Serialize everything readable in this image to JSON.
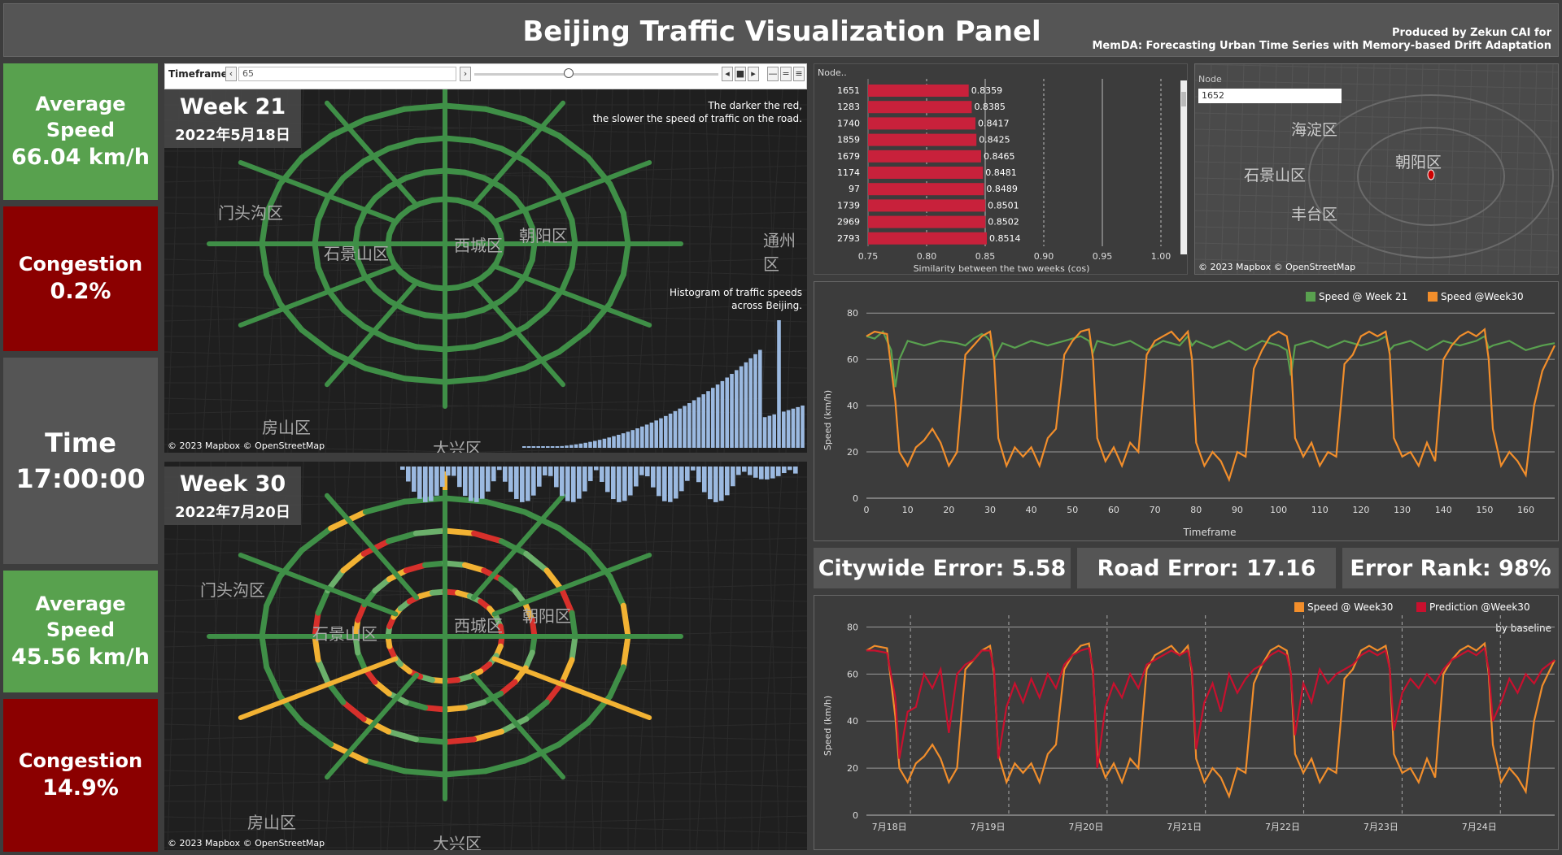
{
  "header": {
    "title": "Beijing Traffic Visualization Panel",
    "credit_line1": "Produced by Zekun CAI for",
    "credit_line2": "MemDA: Forecasting Urban Time Series with Memory-based Drift Adaptation"
  },
  "kpis": {
    "week21_speed_label": "Average Speed",
    "week21_speed_value": "66.04 km/h",
    "week21_congestion_label": "Congestion",
    "week21_congestion_value": "0.2%",
    "time_label": "Time",
    "time_value": "17:00:00",
    "week30_speed_label": "Average Speed",
    "week30_speed_value": "45.56 km/h",
    "week30_congestion_label": "Congestion",
    "week30_congestion_value": "14.9%"
  },
  "timeframe": {
    "label": "Timeframe",
    "value": "65"
  },
  "map_top": {
    "week": "Week 21",
    "date": "2022年5月18日",
    "note_line1": "The darker the red,",
    "note_line2": "the slower the speed of traffic on the road.",
    "hist_line1": "Histogram of traffic speeds",
    "hist_line2": "across Beijing.",
    "copyright": "© 2023 Mapbox © OpenStreetMap",
    "districts": [
      "门头沟区",
      "石景山区",
      "西城区",
      "朝阳区",
      "房山区",
      "大兴区",
      "通州区"
    ]
  },
  "map_bottom": {
    "week": "Week 30",
    "date": "2022年7月20日",
    "copyright": "© 2023 Mapbox © OpenStreetMap",
    "districts": [
      "门头沟区",
      "石景山区",
      "西城区",
      "朝阳区",
      "房山区",
      "大兴区"
    ]
  },
  "similarity": {
    "header": "Node..",
    "xlabel": "Similarity between the two weeks (cos)",
    "colors": {
      "bar": "#c8213b"
    }
  },
  "minimap": {
    "node_label": "Node",
    "node_value": "1652",
    "copyright": "© 2023 Mapbox © OpenStreetMap",
    "districts": [
      "海淀区",
      "石景山区",
      "朝阳区",
      "丰台区"
    ]
  },
  "errors": {
    "citywide": "Citywide Error: 5.58",
    "road": "Road Error: 17.16",
    "rank": "Error Rank: 98%"
  },
  "speed_chart": {
    "legend1": "Speed @ Week 21",
    "legend2": "Speed @Week30",
    "ylabel": "Speed (km/h)",
    "xlabel": "Timeframe",
    "colors": {
      "s1": "#59a14f",
      "s2": "#f28e2b"
    }
  },
  "pred_chart": {
    "legend1": "Speed @ Week30",
    "legend2": "Prediction @Week30",
    "note": "by baseline",
    "ylabel": "Speed (km/h)",
    "colors": {
      "s1": "#f28e2b",
      "s2": "#c8102e"
    }
  },
  "chart_data": [
    {
      "type": "bar",
      "categories": [
        "1651",
        "1283",
        "1740",
        "1859",
        "1679",
        "1174",
        "97",
        "1739",
        "2969",
        "2793"
      ],
      "values": [
        0.8359,
        0.8385,
        0.8417,
        0.8425,
        0.8465,
        0.8481,
        0.8489,
        0.8501,
        0.8502,
        0.8514
      ],
      "xlabel": "Similarity between the two weeks (cos)",
      "xlim": [
        0.75,
        1.0
      ],
      "xticks": [
        "0.75",
        "0.80",
        "0.85",
        "0.90",
        "0.95",
        "1.00"
      ]
    },
    {
      "type": "line",
      "xlabel": "Timeframe",
      "ylabel": "Speed (km/h)",
      "xlim": [
        0,
        167
      ],
      "ylim": [
        0,
        85
      ],
      "xticks": [
        0,
        10,
        20,
        30,
        40,
        50,
        60,
        70,
        80,
        90,
        100,
        110,
        120,
        130,
        140,
        150,
        160
      ],
      "yticks": [
        0,
        20,
        40,
        60,
        80
      ],
      "series": [
        {
          "name": "Speed @ Week 21",
          "x": [
            0,
            2,
            4,
            6,
            7,
            8,
            10,
            14,
            18,
            22,
            24,
            26,
            28,
            29,
            30,
            31,
            33,
            36,
            40,
            44,
            48,
            52,
            54,
            55,
            56,
            60,
            64,
            68,
            72,
            76,
            78,
            79,
            80,
            84,
            88,
            92,
            96,
            100,
            102,
            103,
            104,
            108,
            112,
            116,
            120,
            124,
            126,
            127,
            128,
            132,
            136,
            140,
            144,
            148,
            150,
            151,
            152,
            156,
            160,
            164,
            167
          ],
          "y": [
            70,
            69,
            72,
            64,
            48,
            60,
            68,
            66,
            68,
            67,
            66,
            69,
            71,
            70,
            68,
            60,
            67,
            65,
            68,
            66,
            68,
            70,
            68,
            63,
            68,
            66,
            68,
            64,
            68,
            66,
            70,
            66,
            68,
            65,
            68,
            64,
            68,
            66,
            64,
            53,
            66,
            68,
            65,
            68,
            66,
            68,
            70,
            64,
            66,
            68,
            64,
            68,
            66,
            68,
            70,
            65,
            66,
            68,
            64,
            66,
            67
          ]
        },
        {
          "name": "Speed @Week30",
          "x": [
            0,
            2,
            5,
            7,
            8,
            10,
            12,
            14,
            16,
            18,
            20,
            22,
            24,
            26,
            28,
            30,
            31,
            32,
            34,
            36,
            38,
            40,
            42,
            44,
            46,
            48,
            50,
            52,
            54,
            55,
            56,
            58,
            60,
            62,
            64,
            66,
            68,
            70,
            72,
            74,
            76,
            78,
            79,
            80,
            82,
            84,
            86,
            88,
            90,
            92,
            94,
            96,
            98,
            100,
            102,
            103,
            104,
            106,
            108,
            110,
            112,
            114,
            116,
            118,
            120,
            122,
            124,
            126,
            127,
            128,
            130,
            132,
            134,
            136,
            138,
            140,
            142,
            144,
            146,
            148,
            150,
            151,
            152,
            154,
            156,
            158,
            160,
            162,
            164,
            167
          ],
          "y": [
            70,
            72,
            71,
            42,
            20,
            14,
            22,
            25,
            30,
            24,
            14,
            20,
            62,
            66,
            70,
            72,
            60,
            26,
            14,
            22,
            18,
            22,
            14,
            26,
            30,
            62,
            68,
            72,
            73,
            60,
            26,
            16,
            22,
            14,
            24,
            20,
            62,
            68,
            70,
            72,
            68,
            72,
            60,
            24,
            14,
            20,
            16,
            8,
            20,
            18,
            56,
            64,
            70,
            72,
            70,
            60,
            26,
            18,
            24,
            14,
            20,
            18,
            58,
            62,
            70,
            72,
            70,
            72,
            62,
            26,
            18,
            20,
            14,
            24,
            16,
            60,
            66,
            70,
            72,
            70,
            73,
            60,
            30,
            14,
            20,
            16,
            10,
            40,
            55,
            66
          ]
        }
      ]
    },
    {
      "type": "line",
      "ylabel": "Speed (km/h)",
      "ylim": [
        0,
        85
      ],
      "yticks": [
        0,
        20,
        40,
        60,
        80
      ],
      "xticks": [
        "7月18日",
        "7月19日",
        "7月20日",
        "7月21日",
        "7月22日",
        "7月23日",
        "7月24日"
      ],
      "series": [
        {
          "name": "Speed @ Week30",
          "x": [
            0,
            2,
            5,
            7,
            8,
            10,
            12,
            14,
            16,
            18,
            20,
            22,
            24,
            26,
            28,
            30,
            31,
            32,
            34,
            36,
            38,
            40,
            42,
            44,
            46,
            48,
            50,
            52,
            54,
            55,
            56,
            58,
            60,
            62,
            64,
            66,
            68,
            70,
            72,
            74,
            76,
            78,
            79,
            80,
            82,
            84,
            86,
            88,
            90,
            92,
            94,
            96,
            98,
            100,
            102,
            103,
            104,
            106,
            108,
            110,
            112,
            114,
            116,
            118,
            120,
            122,
            124,
            126,
            127,
            128,
            130,
            132,
            134,
            136,
            138,
            140,
            142,
            144,
            146,
            148,
            150,
            151,
            152,
            154,
            156,
            158,
            160,
            162,
            164,
            167
          ],
          "y": [
            70,
            72,
            71,
            42,
            20,
            14,
            22,
            25,
            30,
            24,
            14,
            20,
            62,
            66,
            70,
            72,
            60,
            26,
            14,
            22,
            18,
            22,
            14,
            26,
            30,
            62,
            68,
            72,
            73,
            60,
            26,
            16,
            22,
            14,
            24,
            20,
            62,
            68,
            70,
            72,
            68,
            72,
            60,
            24,
            14,
            20,
            16,
            8,
            20,
            18,
            56,
            64,
            70,
            72,
            70,
            60,
            26,
            18,
            24,
            14,
            20,
            18,
            58,
            62,
            70,
            72,
            70,
            72,
            62,
            26,
            18,
            20,
            14,
            24,
            16,
            60,
            66,
            70,
            72,
            70,
            73,
            60,
            30,
            14,
            20,
            16,
            10,
            40,
            55,
            66
          ]
        },
        {
          "name": "Prediction @Week30",
          "x": [
            0,
            2,
            5,
            7,
            8,
            10,
            12,
            14,
            16,
            18,
            20,
            22,
            24,
            26,
            28,
            30,
            31,
            32,
            34,
            36,
            38,
            40,
            42,
            44,
            46,
            48,
            50,
            52,
            54,
            55,
            56,
            58,
            60,
            62,
            64,
            66,
            68,
            70,
            72,
            74,
            76,
            78,
            79,
            80,
            82,
            84,
            86,
            88,
            90,
            92,
            94,
            96,
            98,
            100,
            102,
            103,
            104,
            106,
            108,
            110,
            112,
            114,
            116,
            118,
            120,
            122,
            124,
            126,
            127,
            128,
            130,
            132,
            134,
            136,
            138,
            140,
            142,
            144,
            146,
            148,
            150,
            151,
            152,
            154,
            156,
            158,
            160,
            162,
            164,
            167
          ],
          "y": [
            70,
            70,
            69,
            50,
            24,
            44,
            46,
            60,
            54,
            62,
            35,
            60,
            64,
            66,
            70,
            70,
            62,
            24,
            46,
            56,
            48,
            58,
            50,
            60,
            54,
            64,
            68,
            70,
            71,
            62,
            20,
            46,
            56,
            50,
            60,
            54,
            64,
            66,
            68,
            70,
            68,
            70,
            62,
            28,
            48,
            56,
            44,
            60,
            52,
            58,
            62,
            64,
            68,
            70,
            68,
            60,
            34,
            56,
            48,
            62,
            56,
            60,
            62,
            64,
            68,
            70,
            68,
            70,
            62,
            36,
            52,
            58,
            54,
            60,
            56,
            62,
            66,
            68,
            70,
            68,
            71,
            62,
            40,
            48,
            58,
            52,
            60,
            56,
            62,
            66
          ]
        }
      ]
    }
  ]
}
